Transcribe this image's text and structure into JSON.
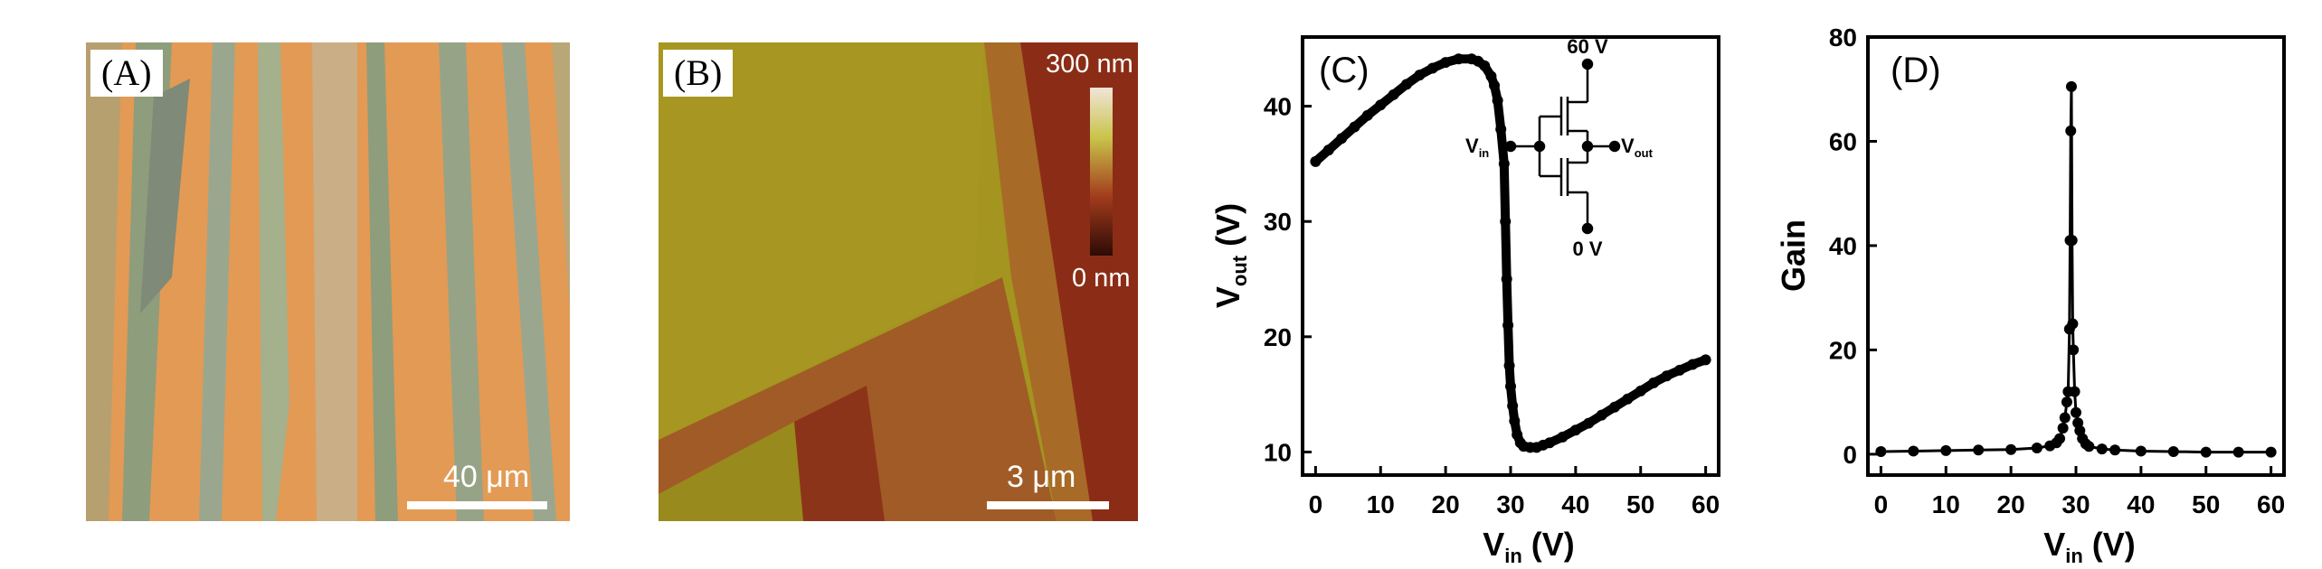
{
  "panels": {
    "a": {
      "label": "(A)",
      "scale_bar": "40 μm"
    },
    "b": {
      "label": "(B)",
      "scale_bar": "3 μm",
      "colorbar_max": "300 nm",
      "colorbar_min": "0 nm"
    }
  },
  "chart_data": [
    {
      "type": "scatter",
      "panel_label": "(C)",
      "xlabel_main": "V",
      "xlabel_sub": "in",
      "xlabel_unit": " (V)",
      "ylabel_main": "V",
      "ylabel_sub": "out",
      "ylabel_unit": " (V)",
      "xlim": [
        -2,
        62
      ],
      "ylim": [
        8,
        46
      ],
      "x_ticks": [
        0,
        10,
        20,
        30,
        40,
        50,
        60
      ],
      "y_ticks": [
        10,
        20,
        30,
        40
      ],
      "grid": false,
      "inset": {
        "top": "60 V",
        "bottom": "0 V",
        "in_main": "V",
        "in_sub": "in",
        "out_main": "V",
        "out_sub": "out"
      },
      "series": [
        {
          "x": [
            0,
            2,
            4,
            6,
            8,
            10,
            12,
            14,
            16,
            18,
            20,
            22,
            24,
            25,
            26,
            27,
            27.5,
            28,
            28.5,
            29,
            29.2,
            29.4,
            29.6,
            29.8,
            30,
            30.3,
            30.6,
            31,
            31.5,
            32,
            33,
            34,
            35,
            36,
            38,
            40,
            42,
            44,
            46,
            48,
            50,
            52,
            54,
            56,
            58,
            60
          ],
          "y": [
            35.2,
            36.2,
            37.2,
            38.2,
            39.2,
            40.1,
            41,
            41.9,
            42.7,
            43.3,
            43.8,
            44.1,
            44.1,
            43.9,
            43.5,
            42.6,
            41.8,
            40.5,
            38,
            35,
            30,
            25,
            21,
            17.5,
            15.7,
            14,
            12.7,
            11.5,
            10.8,
            10.5,
            10.4,
            10.4,
            10.6,
            10.8,
            11.3,
            11.9,
            12.5,
            13.2,
            13.9,
            14.6,
            15.3,
            16,
            16.6,
            17.1,
            17.6,
            18
          ]
        }
      ]
    },
    {
      "type": "line",
      "panel_label": "(D)",
      "xlabel_main": "V",
      "xlabel_sub": "in",
      "xlabel_unit": " (V)",
      "ylabel": "Gain",
      "xlim": [
        -2,
        62
      ],
      "ylim": [
        -4,
        80
      ],
      "x_ticks": [
        0,
        10,
        20,
        30,
        40,
        50,
        60
      ],
      "y_ticks": [
        0,
        20,
        40,
        60,
        80
      ],
      "grid": false,
      "series": [
        {
          "x": [
            0,
            5,
            10,
            15,
            20,
            24,
            26,
            27,
            27.5,
            28,
            28.3,
            28.6,
            28.8,
            29,
            29.1,
            29.2,
            29.3,
            29.4,
            29.5,
            29.6,
            29.8,
            30,
            30.3,
            30.6,
            31,
            31.5,
            32,
            34,
            36,
            40,
            45,
            50,
            55,
            60
          ],
          "y": [
            0.5,
            0.6,
            0.7,
            0.8,
            0.9,
            1.2,
            1.6,
            2.2,
            3,
            5,
            7,
            10,
            12,
            24,
            41,
            62,
            70.5,
            41,
            25,
            20,
            12,
            8,
            6,
            4.5,
            3,
            2,
            1.5,
            1,
            0.8,
            0.6,
            0.5,
            0.4,
            0.4,
            0.4
          ]
        }
      ]
    }
  ]
}
